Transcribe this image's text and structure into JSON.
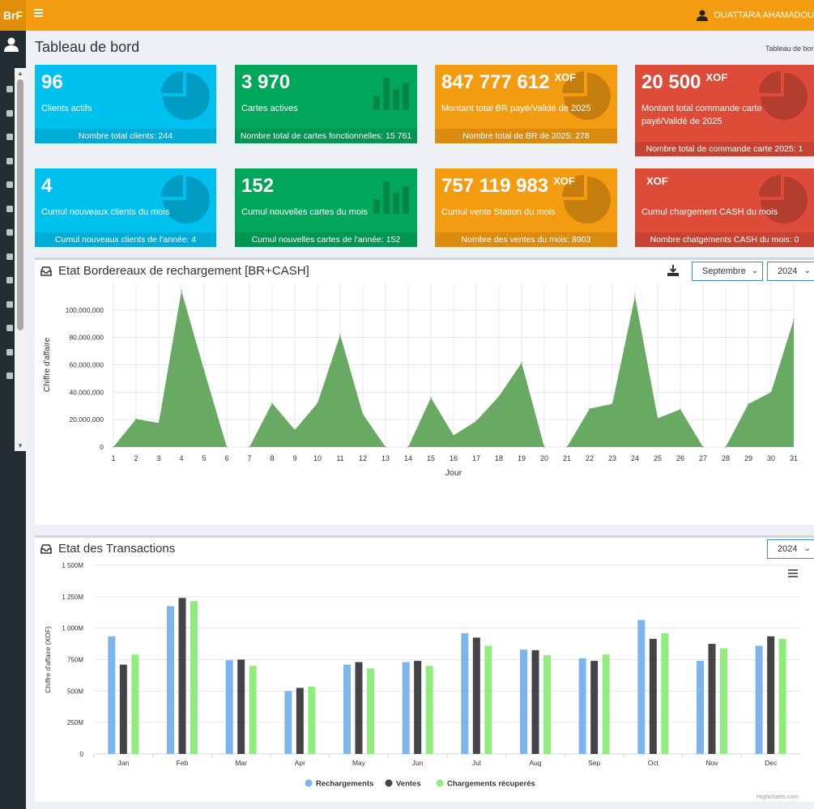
{
  "app": {
    "logo": "BrF",
    "user": "OUATTARA AHAMADOU"
  },
  "header": {
    "title": "Tableau de bord",
    "breadcrumb": "Tableau de bord"
  },
  "colors": {
    "aqua": "#00c0ef",
    "green": "#00a65a",
    "yellow": "#f39c12",
    "red": "#dd4b39",
    "area": "#68aa63",
    "recharge": "#7cb5ec",
    "ventes": "#434348",
    "chargements": "#90ed7d"
  },
  "sidebar": {
    "icons": [
      "user-icon",
      "line-chart-icon",
      "users-icon",
      "file-icon",
      "list-icon",
      "cart-icon",
      "cart-plus-icon",
      "money-icon",
      "bar-chart-icon",
      "exchange-icon",
      "map-marker-icon",
      "plus-circle-icon",
      "reply-icon",
      "circle-icon"
    ]
  },
  "boxes": [
    {
      "value": "96",
      "unit": "",
      "label": "Clients actifs",
      "footer": "Nombre total clients: 244",
      "color": "aqua",
      "icon": "pie-chart-icon"
    },
    {
      "value": "3 970",
      "unit": "",
      "label": "Cartes actives",
      "footer": "Nombre total de cartes fonctionnelles: 15 761",
      "color": "green",
      "icon": "bar-chart-icon"
    },
    {
      "value": "847 777 612",
      "unit": "XOF",
      "label": "Montant total BR payé/Validé de 2025",
      "footer": "Nombre total de BR de 2025: 278",
      "color": "yellow",
      "icon": "pie-chart-icon"
    },
    {
      "value": "20 500",
      "unit": "XOF",
      "label": "Montant total commande carte payé/Validé de 2025",
      "footer": "Nombre total de commande carte 2025: 1",
      "color": "red",
      "icon": "pie-chart-icon"
    },
    {
      "value": "4",
      "unit": "",
      "label": "Cumul nouveaux clients du mois",
      "footer": "Cumul nouveaux clients de l'année: 4",
      "color": "aqua",
      "icon": "pie-chart-icon"
    },
    {
      "value": "152",
      "unit": "",
      "label": "Cumul nouvelles cartes du mois",
      "footer": "Cumul nouvelles cartes de l'année: 152",
      "color": "green",
      "icon": "bar-chart-icon"
    },
    {
      "value": "757 119 983",
      "unit": "XOF",
      "label": "Cumul vente Station du mois",
      "footer": "Nombre des ventes du mois: 8903",
      "color": "yellow",
      "icon": "pie-chart-icon"
    },
    {
      "value": "",
      "unit": "XOF",
      "label": "Cumul chargement CASH du mois",
      "footer": "Nombre chatgements CASH du mois: 0",
      "color": "red",
      "icon": "pie-chart-icon"
    }
  ],
  "panel1": {
    "title": "Etat Bordereaux de rechargement [BR+CASH]",
    "month": "Septembre",
    "year": "2024"
  },
  "panel2": {
    "title": "Etat des Transactions",
    "year": "2024",
    "credits": "Highcharts.com"
  },
  "chart_data": [
    {
      "type": "area",
      "xlabel": "Jour",
      "ylabel": "Chiffre d'affaire",
      "ylim": [
        0,
        120000000
      ],
      "yticks": [
        0,
        20000000,
        40000000,
        60000000,
        80000000,
        100000000
      ],
      "ytick_labels": [
        "0",
        "20,000,000",
        "40,000,000",
        "60,000,000",
        "80,000,000",
        "100,000,000"
      ],
      "x": [
        1,
        2,
        3,
        4,
        5,
        6,
        7,
        8,
        9,
        10,
        11,
        12,
        13,
        14,
        15,
        16,
        17,
        18,
        19,
        20,
        21,
        22,
        23,
        24,
        25,
        26,
        27,
        28,
        29,
        30,
        31
      ],
      "values": [
        0,
        20500000,
        17500000,
        114000000,
        56000000,
        0,
        0,
        32000000,
        12500000,
        32000000,
        82000000,
        24000000,
        0,
        0,
        36000000,
        8500000,
        19000000,
        37000000,
        61500000,
        0,
        0,
        28000000,
        31500000,
        110000000,
        21000000,
        27500000,
        0,
        0,
        31500000,
        40000000,
        93000000
      ],
      "grid": true
    },
    {
      "type": "bar",
      "ylabel": "Chiffre d'affaire (XOF)",
      "ylim": [
        0,
        1500
      ],
      "yticks": [
        0,
        250,
        500,
        750,
        1000,
        1250,
        1500
      ],
      "ytick_labels": [
        "0",
        "250M",
        "500M",
        "750M",
        "1 000M",
        "1 250M",
        "1 500M"
      ],
      "categories": [
        "Jan",
        "Feb",
        "Mar",
        "Apr",
        "May",
        "Jun",
        "Jul",
        "Aug",
        "Sep",
        "Oct",
        "Nov",
        "Dec"
      ],
      "series": [
        {
          "name": "Rechargements",
          "values": [
            935,
            1175,
            745,
            500,
            710,
            730,
            960,
            830,
            760,
            1065,
            740,
            860
          ]
        },
        {
          "name": "Ventes",
          "values": [
            710,
            1240,
            750,
            525,
            730,
            740,
            925,
            825,
            740,
            915,
            875,
            935
          ]
        },
        {
          "name": "Chargements récuperés",
          "values": [
            790,
            1215,
            700,
            535,
            680,
            700,
            860,
            785,
            790,
            960,
            840,
            915
          ]
        }
      ],
      "legend": "bottom-center",
      "grid": true
    }
  ]
}
